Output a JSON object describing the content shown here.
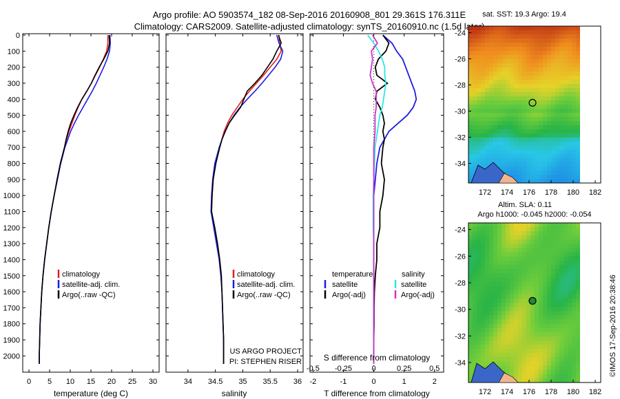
{
  "header": {
    "line1": "Argo profile: AO 5903574_182 08-Sep-2016 20160908_801 29.361S 176.311E",
    "line2": "Climatology: CARS2009. Satellite-adjusted climatology: synTS_20160910.nc (1.5d later)"
  },
  "colors": {
    "climatology": "#e81c1c",
    "satellite": "#1c1ce0",
    "argo": "#000000",
    "s_satellite": "#2ee6e6",
    "s_argo": "#cc33cc"
  },
  "chart_data": [
    {
      "type": "line",
      "xlabel": "temperature (deg C)",
      "x_ticks": [
        "0",
        "5",
        "10",
        "15",
        "20",
        "25",
        "30"
      ],
      "xlim": [
        -1.5,
        31.5
      ],
      "ylim": [
        0,
        2080
      ],
      "y_ticks": [
        "0",
        "100",
        "200",
        "300",
        "400",
        "500",
        "600",
        "700",
        "800",
        "900",
        "1000",
        "1100",
        "1200",
        "1300",
        "1400",
        "1500",
        "1600",
        "1700",
        "1800",
        "1900",
        "2000"
      ],
      "legend": [
        "climatology",
        "satellite-adj. clim.",
        "Argo(..raw -QC)"
      ],
      "y": [
        0,
        50,
        100,
        150,
        200,
        250,
        300,
        350,
        400,
        450,
        500,
        550,
        600,
        650,
        700,
        800,
        900,
        1000,
        1100,
        1200,
        1300,
        1400,
        1500,
        1600,
        1700,
        1800,
        1900,
        2000,
        2050
      ],
      "series": [
        {
          "name": "climatology",
          "values": [
            19.1,
            19.1,
            18.8,
            18.0,
            17.1,
            16.1,
            15.1,
            14.0,
            12.8,
            11.9,
            11.1,
            10.4,
            9.7,
            9.1,
            8.6,
            7.6,
            6.9,
            6.1,
            5.4,
            4.8,
            4.3,
            3.8,
            3.4,
            3.1,
            2.9,
            2.7,
            2.6,
            2.5,
            2.5
          ]
        },
        {
          "name": "satellite-adj. clim.",
          "values": [
            19.6,
            19.7,
            19.5,
            18.9,
            18.1,
            17.2,
            16.3,
            15.3,
            14.2,
            13.1,
            12.0,
            11.0,
            10.1,
            9.4,
            8.7,
            7.7,
            6.9,
            6.1,
            5.4,
            4.8,
            4.3,
            3.8,
            3.4,
            3.1,
            2.9,
            2.7,
            2.6,
            2.5,
            2.5
          ]
        },
        {
          "name": "Argo(..raw -QC)",
          "values": [
            19.4,
            19.5,
            19.1,
            18.1,
            17.0,
            16.0,
            15.1,
            14.0,
            12.8,
            11.8,
            10.9,
            10.1,
            9.5,
            9.0,
            8.6,
            7.6,
            6.8,
            6.1,
            5.4,
            4.8,
            4.3,
            3.8,
            3.4,
            3.1,
            2.9,
            2.7,
            2.6,
            2.5,
            2.5
          ]
        }
      ]
    },
    {
      "type": "line",
      "xlabel": "salinity",
      "x_ticks": [
        "34",
        "34.5",
        "35",
        "35.5",
        "36"
      ],
      "xlim": [
        33.6,
        36.1
      ],
      "ylim": [
        0,
        2080
      ],
      "legend": [
        "climatology",
        "satellite-adj. clim.",
        "Argo(..raw -QC)"
      ],
      "annotation": [
        "US ARGO PROJECT",
        "PI: STEPHEN RISER"
      ],
      "y": [
        0,
        50,
        100,
        150,
        200,
        250,
        300,
        350,
        400,
        450,
        500,
        550,
        600,
        650,
        700,
        800,
        900,
        1000,
        1100,
        1200,
        1300,
        1400,
        1500,
        1600,
        1700,
        1800,
        1900,
        2000,
        2050
      ],
      "series": [
        {
          "name": "climatology",
          "values": [
            35.66,
            35.67,
            35.7,
            35.62,
            35.5,
            35.38,
            35.25,
            35.12,
            35.0,
            34.9,
            34.8,
            34.72,
            34.66,
            34.62,
            34.58,
            34.5,
            34.46,
            34.44,
            34.43,
            34.48,
            34.53,
            34.57,
            34.6,
            34.62,
            34.63,
            34.64,
            34.65,
            34.65,
            34.65
          ]
        },
        {
          "name": "satellite-adj. clim.",
          "values": [
            35.62,
            35.66,
            35.73,
            35.69,
            35.59,
            35.47,
            35.35,
            35.22,
            35.08,
            34.95,
            34.84,
            34.75,
            34.68,
            34.62,
            34.57,
            34.49,
            34.45,
            34.43,
            34.42,
            34.47,
            34.52,
            34.57,
            34.6,
            34.62,
            34.63,
            34.64,
            34.65,
            34.65,
            34.65
          ]
        },
        {
          "name": "Argo(..raw -QC)",
          "values": [
            35.65,
            35.7,
            35.62,
            35.55,
            35.45,
            35.35,
            35.22,
            35.08,
            35.02,
            34.96,
            34.85,
            34.75,
            34.68,
            34.62,
            34.58,
            34.51,
            34.46,
            34.44,
            34.43,
            34.49,
            34.54,
            34.58,
            34.61,
            34.62,
            34.63,
            34.64,
            34.65,
            34.65,
            34.65
          ]
        }
      ]
    },
    {
      "type": "line",
      "xlabel": "T difference from climatology",
      "x_ticks": [
        "-2",
        "-1",
        "0",
        "1",
        "2"
      ],
      "xlim": [
        -2.1,
        2.3
      ],
      "x2label": "S difference from climatology",
      "x2_ticks": [
        "-0.5",
        "-0.25",
        "0",
        "0.25",
        "0.5"
      ],
      "x2lim": [
        -0.525,
        0.575
      ],
      "ylim": [
        0,
        2080
      ],
      "legend": {
        "temperature": [
          "satellite",
          "Argo(-adj)"
        ],
        "salinity": [
          "satellite",
          "Argo(-adj)"
        ],
        "temperature_title": "temperature",
        "salinity_title": "salinity"
      },
      "y": [
        0,
        50,
        100,
        150,
        200,
        250,
        300,
        350,
        400,
        450,
        500,
        550,
        600,
        650,
        700,
        800,
        900,
        1000,
        1100,
        1200,
        1300,
        1400,
        1500,
        1600,
        1700,
        1800,
        1900,
        2000,
        2050
      ],
      "series": [
        {
          "name": "T satellite",
          "values": [
            0.3,
            0.6,
            0.75,
            0.95,
            1.05,
            1.15,
            1.25,
            1.35,
            1.4,
            1.3,
            1.1,
            0.8,
            0.5,
            0.35,
            0.2,
            0.1,
            0.05,
            0,
            0,
            0,
            0,
            0,
            0,
            0,
            0,
            0,
            0,
            0,
            0
          ]
        },
        {
          "name": "T Argo(-adj)",
          "values": [
            0.3,
            0.5,
            0.4,
            0.15,
            0.05,
            0.1,
            0.45,
            0.1,
            0.05,
            0.2,
            0.3,
            0.35,
            0.3,
            0.35,
            0.3,
            0.25,
            0.35,
            0.3,
            0.2,
            0.2,
            0.1,
            0.1,
            0.05,
            0.02,
            0.01,
            0.01,
            0,
            0,
            0
          ]
        },
        {
          "name": "S satellite",
          "values": [
            -0.05,
            0,
            0.04,
            0.07,
            0.09,
            0.09,
            0.1,
            0.09,
            0.08,
            0.07,
            0.05,
            0.04,
            0.03,
            0.02,
            0.01,
            0.005,
            0,
            -0.005,
            -0.005,
            -0.005,
            0,
            0,
            0,
            0,
            0,
            0,
            0,
            0,
            0
          ]
        },
        {
          "name": "S Argo(-adj)",
          "values": [
            -0.01,
            0.03,
            -0.02,
            -0.01,
            -0.02,
            -0.03,
            -0.01,
            0.02,
            0.02,
            0.02,
            0.01,
            0.01,
            0.01,
            0.005,
            0,
            0,
            0,
            0,
            0,
            0,
            0,
            0,
            0,
            0,
            0,
            0,
            0,
            0,
            0
          ]
        }
      ]
    },
    {
      "type": "heatmap",
      "title": "sat. SST: 19.3  Argo: 19.4",
      "x_ticks": [
        "172",
        "174",
        "176",
        "178",
        "180",
        "182"
      ],
      "y_ticks": [
        "-24",
        "-26",
        "-28",
        "-30",
        "-32",
        "-34"
      ],
      "xlim": [
        170.5,
        182.5
      ],
      "ylim": [
        -35.5,
        -23.5
      ],
      "float_position": {
        "lon": 176.311,
        "lat": -29.361
      }
    },
    {
      "type": "heatmap",
      "title": "Altim. SLA: 0.11",
      "subtitle": "Argo h1000: -0.045 h2000: -0.054",
      "x_ticks": [
        "172",
        "174",
        "176",
        "178",
        "180",
        "182"
      ],
      "y_ticks": [
        "-24",
        "-26",
        "-28",
        "-30",
        "-32",
        "-34"
      ],
      "xlim": [
        170.5,
        182.5
      ],
      "ylim": [
        -35.5,
        -23.5
      ],
      "float_position": {
        "lon": 176.311,
        "lat": -29.361
      }
    }
  ],
  "side_label": "©IMOS 17-Sep-2016 20:38:46"
}
